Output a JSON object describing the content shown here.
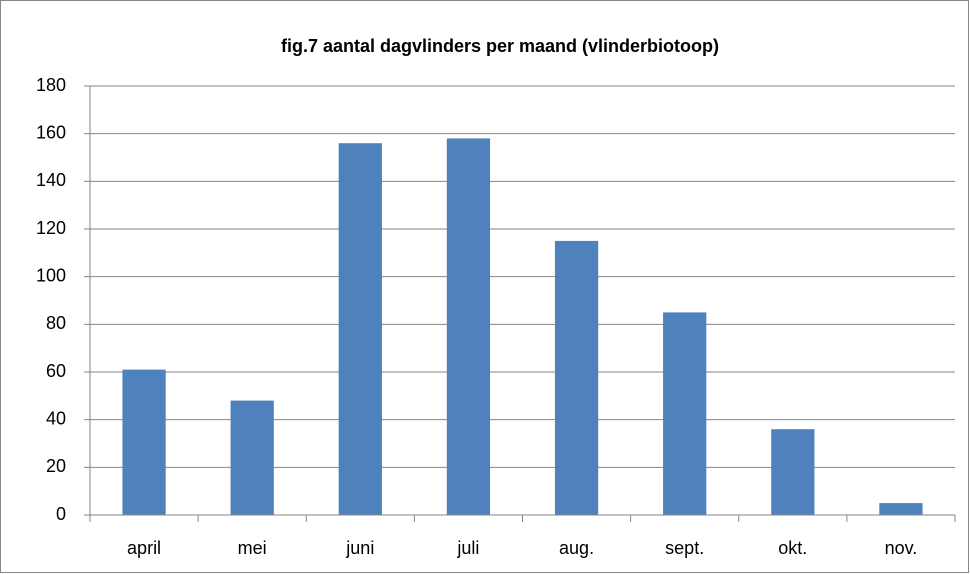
{
  "chart_data": {
    "type": "bar",
    "title": "fig.7 aantal dagvlinders per maand (vlinderbiotoop)",
    "categories": [
      "april",
      "mei",
      "juni",
      "juli",
      "aug.",
      "sept.",
      "okt.",
      "nov."
    ],
    "values": [
      61,
      48,
      156,
      158,
      115,
      85,
      36,
      5
    ],
    "color": "#4f81bd",
    "ylim": [
      0,
      180
    ],
    "yticks": [
      0,
      20,
      40,
      60,
      80,
      100,
      120,
      140,
      160,
      180
    ],
    "grid": true
  }
}
